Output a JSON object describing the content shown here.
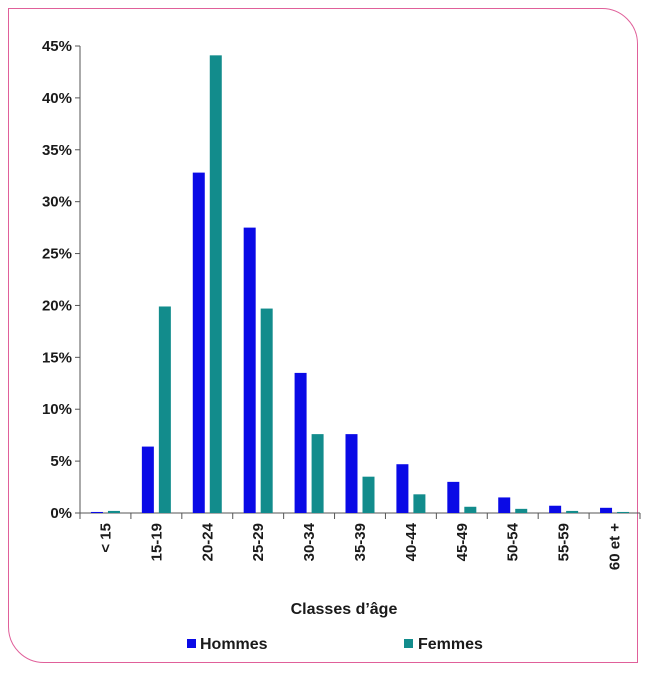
{
  "chart_data": {
    "type": "bar",
    "title": "",
    "xlabel": "Classes d’âge",
    "ylabel": "",
    "categories": [
      "< 15",
      "15-19",
      "20-24",
      "25-29",
      "30-34",
      "35-39",
      "40-44",
      "45-49",
      "50-54",
      "55-59",
      "60 et +"
    ],
    "series": [
      {
        "name": "Hommes",
        "color": "#0a0ae6",
        "values": [
          0.1,
          6.4,
          32.8,
          27.5,
          13.5,
          7.6,
          4.7,
          3.0,
          1.5,
          0.7,
          0.5
        ]
      },
      {
        "name": "Femmes",
        "color": "#128c8c",
        "values": [
          0.2,
          19.9,
          44.1,
          19.7,
          7.6,
          3.5,
          1.8,
          0.6,
          0.4,
          0.2,
          0.1
        ]
      }
    ],
    "ylim": [
      0,
      45
    ],
    "yticks": [
      "0%",
      "5%",
      "10%",
      "15%",
      "20%",
      "25%",
      "30%",
      "35%",
      "40%",
      "45%"
    ],
    "grid": false,
    "legend_position": "bottom"
  },
  "colors": {
    "frame": "#e0609a",
    "axis": "#555555"
  }
}
